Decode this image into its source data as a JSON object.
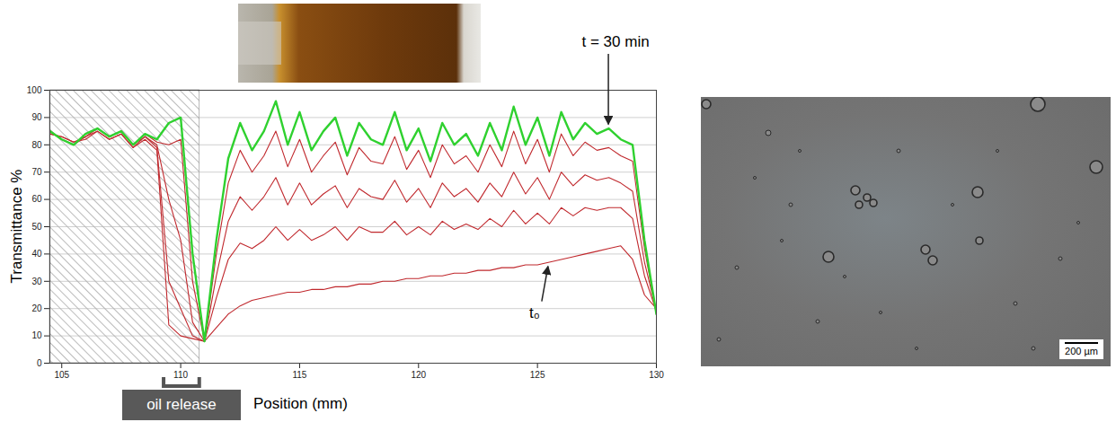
{
  "chart_data": {
    "type": "line",
    "x_label": "Position (mm)",
    "y_label": "Transmittance %",
    "xlim": [
      104.5,
      130
    ],
    "xticks": [
      105,
      110,
      115,
      120,
      125,
      130
    ],
    "ylim": [
      0,
      100
    ],
    "yticks": [
      0,
      10,
      20,
      30,
      40,
      50,
      60,
      70,
      80,
      90,
      100
    ],
    "grid": true,
    "hatched_x": [
      104.5,
      110.8
    ],
    "x": [
      104.5,
      105,
      105.5,
      106,
      106.5,
      107,
      107.5,
      108,
      108.5,
      109,
      109.5,
      110,
      110.5,
      111,
      111.5,
      112,
      112.5,
      113,
      113.5,
      114,
      114.5,
      115,
      115.5,
      116,
      116.5,
      117,
      117.5,
      118,
      118.5,
      119,
      119.5,
      120,
      120.5,
      121,
      121.5,
      122,
      122.5,
      123,
      123.5,
      124,
      124.5,
      125,
      125.5,
      126,
      126.5,
      127,
      127.5,
      128,
      128.5,
      129,
      129.5,
      130
    ],
    "series": [
      {
        "color": "#c0282d",
        "values": [
          84,
          83,
          81,
          82,
          85,
          82,
          84,
          79,
          82,
          78,
          14,
          10,
          9,
          8,
          13,
          18,
          21,
          23,
          24,
          25,
          26,
          26,
          27,
          27,
          28,
          28,
          29,
          29,
          30,
          30,
          31,
          31,
          32,
          32,
          33,
          33,
          34,
          34,
          35,
          35,
          36,
          36,
          37,
          38,
          39,
          40,
          41,
          42,
          43,
          38,
          25,
          20
        ]
      },
      {
        "color": "#c0282d",
        "values": [
          84,
          83,
          81,
          83,
          85,
          82,
          84,
          79,
          83,
          79,
          30,
          20,
          10,
          8,
          24,
          38,
          44,
          42,
          45,
          50,
          45,
          49,
          45,
          47,
          50,
          45,
          50,
          48,
          48,
          52,
          47,
          50,
          47,
          52,
          49,
          51,
          49,
          53,
          50,
          56,
          51,
          55,
          51,
          57,
          54,
          57,
          56,
          57,
          57,
          53,
          32,
          19
        ]
      },
      {
        "color": "#c0282d",
        "values": [
          85,
          82,
          80,
          83,
          86,
          83,
          85,
          80,
          83,
          80,
          60,
          45,
          15,
          8,
          32,
          52,
          61,
          56,
          61,
          68,
          58,
          66,
          58,
          62,
          65,
          57,
          64,
          61,
          60,
          67,
          59,
          64,
          57,
          66,
          61,
          64,
          59,
          66,
          61,
          70,
          62,
          68,
          60,
          70,
          65,
          69,
          67,
          68,
          66,
          63,
          37,
          19
        ]
      },
      {
        "color": "#c0282d",
        "values": [
          85,
          82,
          80,
          84,
          86,
          83,
          85,
          80,
          84,
          81,
          80,
          82,
          30,
          8,
          40,
          66,
          78,
          70,
          76,
          85,
          72,
          82,
          70,
          76,
          81,
          69,
          79,
          74,
          73,
          83,
          71,
          78,
          68,
          80,
          73,
          76,
          70,
          80,
          72,
          85,
          73,
          82,
          70,
          84,
          76,
          81,
          78,
          79,
          76,
          74,
          42,
          18
        ]
      },
      {
        "color": "#2fd12f",
        "values": [
          85,
          82,
          80,
          84,
          86,
          83,
          85,
          80,
          84,
          82,
          88,
          90,
          40,
          8,
          45,
          75,
          88,
          78,
          85,
          96,
          80,
          92,
          78,
          85,
          90,
          76,
          88,
          82,
          80,
          92,
          78,
          86,
          74,
          88,
          80,
          84,
          76,
          88,
          78,
          94,
          80,
          90,
          76,
          92,
          82,
          88,
          84,
          86,
          82,
          80,
          45,
          18
        ]
      }
    ],
    "annotations": [
      {
        "text": "t = 30 min",
        "x": 128,
        "y": 86
      },
      {
        "text": "t₀",
        "x": 125.5,
        "y": 37
      },
      {
        "text": "oil release",
        "x": [
          109.3,
          110.8
        ]
      }
    ]
  },
  "micrograph": {
    "scale_bar_label": "200 µm"
  }
}
